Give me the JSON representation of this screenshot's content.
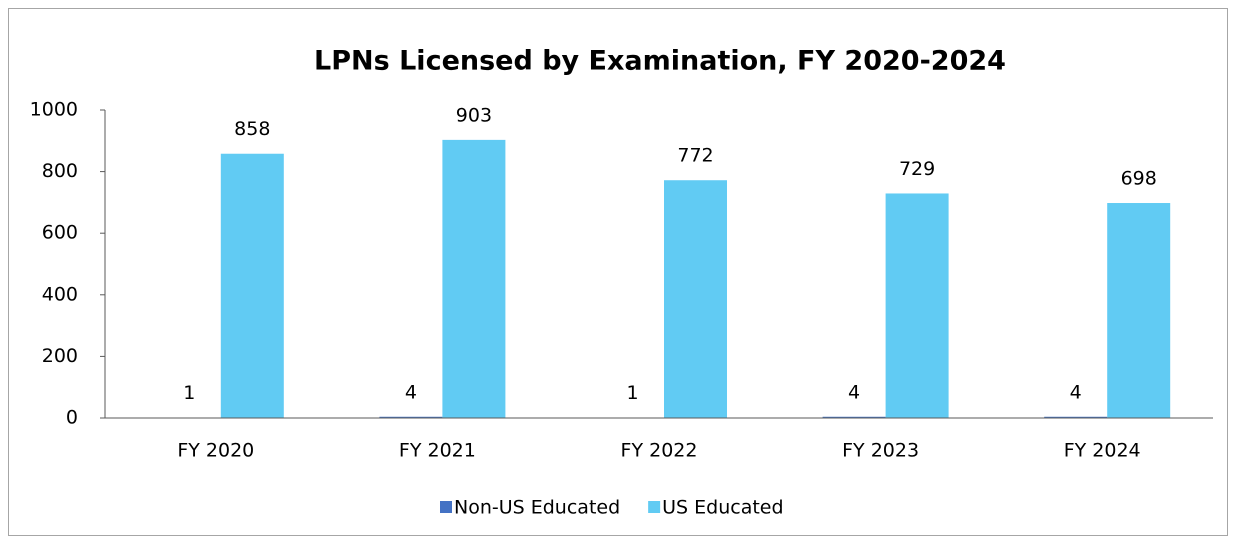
{
  "chart_data": {
    "type": "bar",
    "title": "LPNs Licensed by Examination, FY 2020-2024",
    "categories": [
      "FY 2020",
      "FY 2021",
      "FY 2022",
      "FY 2023",
      "FY 2024"
    ],
    "series": [
      {
        "name": "Non-US Educated",
        "color": "#4472c4",
        "values": [
          1,
          4,
          1,
          4,
          4
        ]
      },
      {
        "name": "US Educated",
        "color": "#61cbf3",
        "values": [
          858,
          903,
          772,
          729,
          698
        ]
      }
    ],
    "ylim": [
      0,
      1000
    ],
    "yticks": [
      0,
      200,
      400,
      600,
      800,
      1000
    ],
    "legend": "bottom"
  }
}
